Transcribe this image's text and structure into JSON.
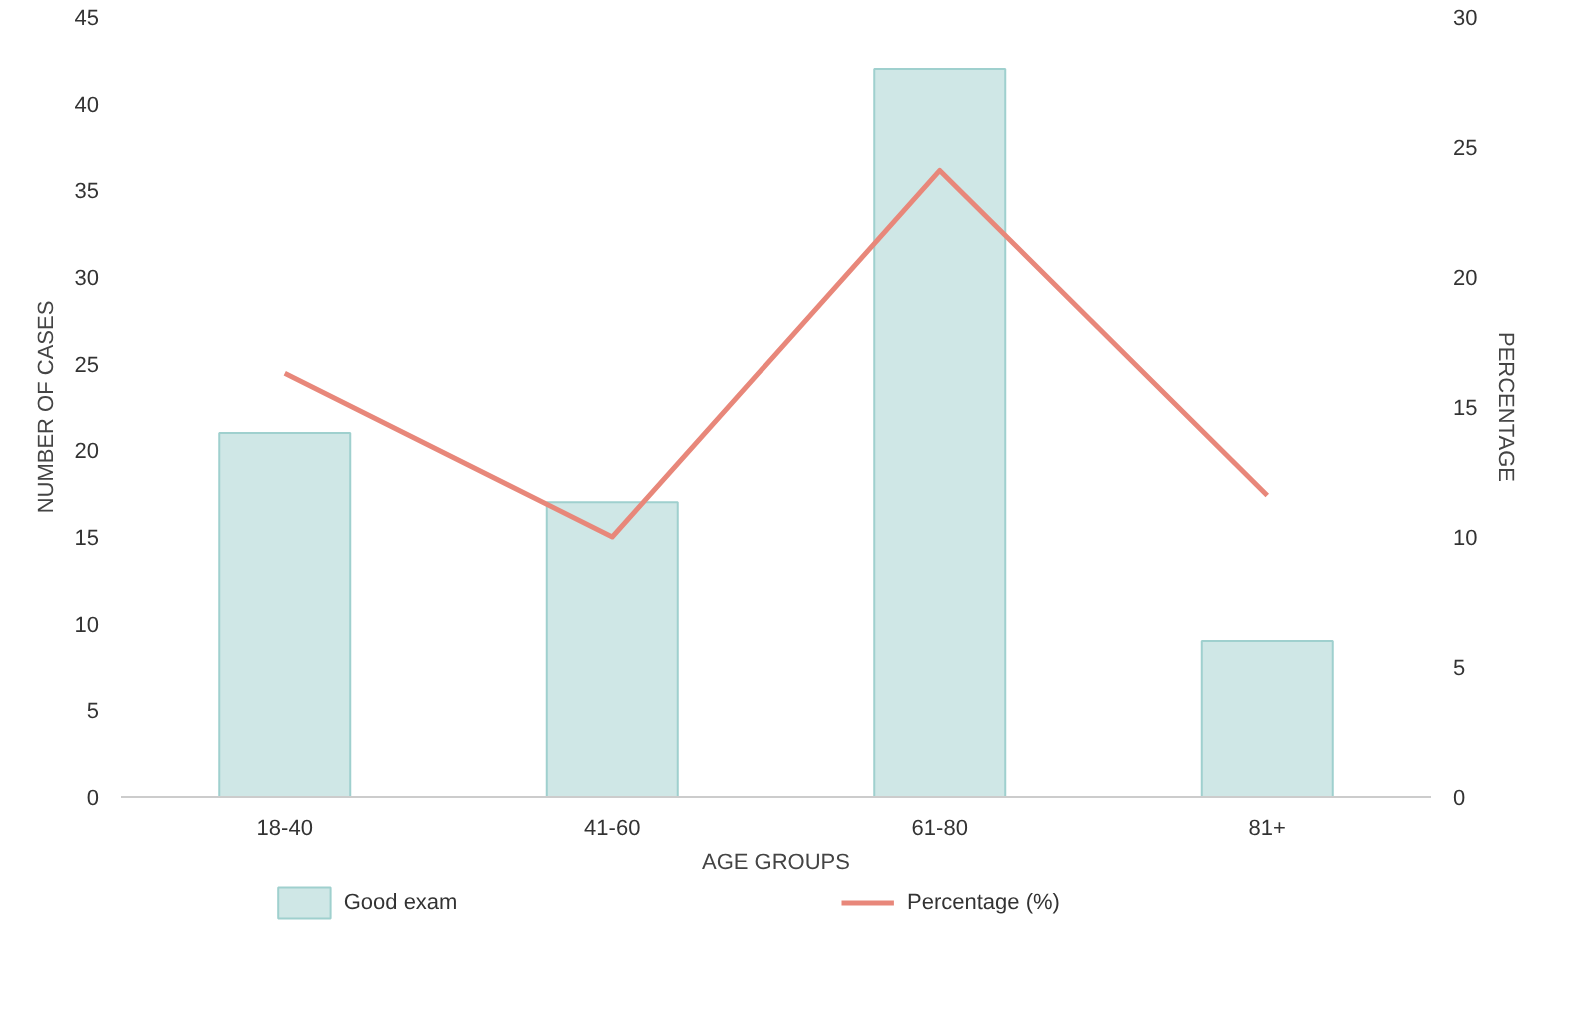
{
  "chart_data": {
    "type": "bar",
    "xlabel": "AGE GROUPS",
    "ylabel": "NUMBER OF CASES",
    "y2label": "PERCENTAGE",
    "categories": [
      "18-40",
      "41-60",
      "61-80",
      "81+"
    ],
    "series": [
      {
        "name": "Good exam",
        "color": "#cfe7e6",
        "values": [
          21,
          17,
          42,
          9
        ]
      },
      {
        "name": "Percentage (%)",
        "type": "line",
        "axis": "y2",
        "color": "#e8877a",
        "values": [
          16.3,
          10.0,
          24.1,
          11.6
        ]
      }
    ],
    "ylim": [
      0,
      45
    ],
    "yticks": [
      0,
      5,
      10,
      15,
      20,
      25,
      30,
      35,
      40,
      45
    ],
    "y2lim": [
      0,
      30
    ],
    "y2ticks": [
      0,
      5,
      10,
      15,
      20,
      25,
      30
    ],
    "grid": false,
    "legend": "bottom",
    "marker": "none",
    "line_style": "solid"
  }
}
